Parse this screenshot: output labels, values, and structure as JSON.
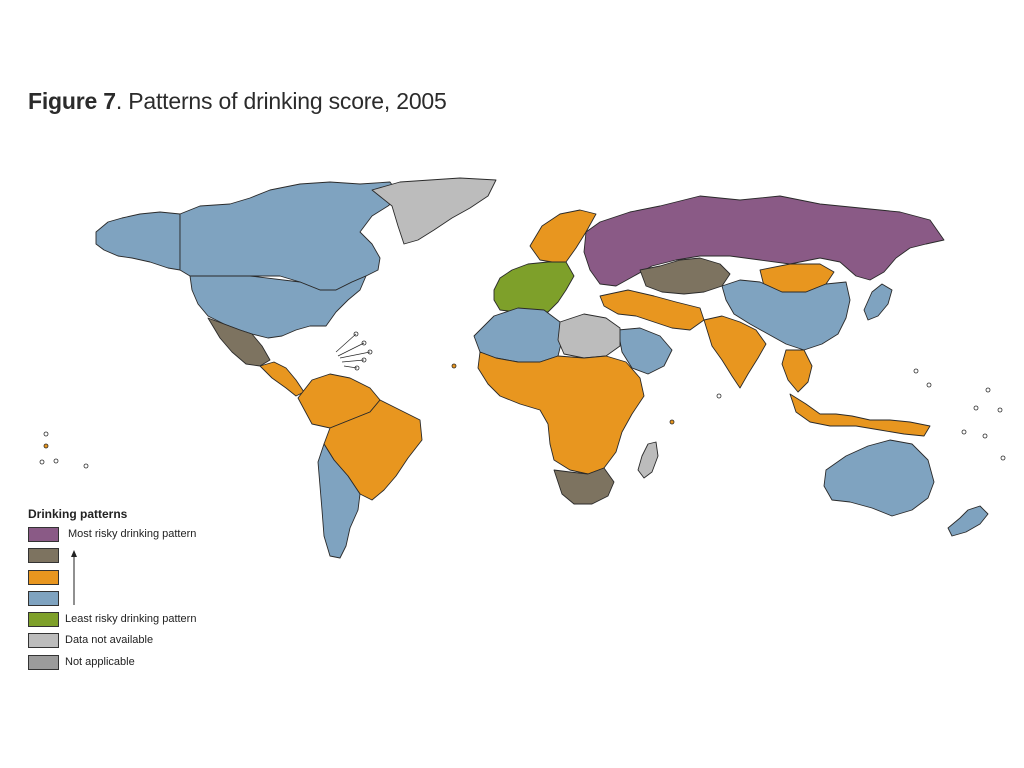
{
  "figure": {
    "label": "Figure 7",
    "title": ". Patterns of drinking score, 2005"
  },
  "colors": {
    "most_risky": "#8a5a86",
    "high": "#7d7360",
    "medium": "#e8961f",
    "low": "#7fa3c0",
    "least_risky": "#7ea02a",
    "data_not_available": "#bcbcbc",
    "not_applicable": "#9b9b9b",
    "border": "#2a2a2a"
  },
  "legend": {
    "title": "Drinking patterns",
    "items": [
      {
        "label": "Most risky drinking pattern",
        "color": "#8a5a86"
      },
      {
        "label": "",
        "color": "#7d7360"
      },
      {
        "label": "",
        "color": "#e8961f"
      },
      {
        "label": "",
        "color": "#7fa3c0"
      },
      {
        "label": "Least risky drinking pattern",
        "color": "#7ea02a"
      },
      {
        "label": "Data not available",
        "color": "#bcbcbc"
      },
      {
        "label": "Not applicable",
        "color": "#9b9b9b"
      }
    ]
  },
  "regions": [
    {
      "name": "Canada",
      "category": "low"
    },
    {
      "name": "United States",
      "category": "low"
    },
    {
      "name": "Alaska",
      "category": "low"
    },
    {
      "name": "Mexico",
      "category": "high"
    },
    {
      "name": "Central America",
      "category": "medium"
    },
    {
      "name": "Greenland",
      "category": "data_not_available"
    },
    {
      "name": "Colombia / Venezuela",
      "category": "medium"
    },
    {
      "name": "Brazil",
      "category": "medium"
    },
    {
      "name": "Argentina / Chile",
      "category": "low"
    },
    {
      "name": "Russia",
      "category": "most_risky"
    },
    {
      "name": "Kazakhstan",
      "category": "high"
    },
    {
      "name": "Mongolia",
      "category": "medium"
    },
    {
      "name": "China",
      "category": "low"
    },
    {
      "name": "India",
      "category": "medium"
    },
    {
      "name": "Western Europe",
      "category": "least_risky"
    },
    {
      "name": "Scandinavia",
      "category": "medium"
    },
    {
      "name": "North Africa",
      "category": "low"
    },
    {
      "name": "Libya / Egypt",
      "category": "data_not_available"
    },
    {
      "name": "Sub-Saharan Africa",
      "category": "medium"
    },
    {
      "name": "South Africa",
      "category": "high"
    },
    {
      "name": "Madagascar",
      "category": "data_not_available"
    },
    {
      "name": "Saudi Arabia",
      "category": "low"
    },
    {
      "name": "Australia",
      "category": "low"
    },
    {
      "name": "Indonesia",
      "category": "medium"
    },
    {
      "name": "Japan",
      "category": "low"
    },
    {
      "name": "New Zealand",
      "category": "low"
    }
  ]
}
